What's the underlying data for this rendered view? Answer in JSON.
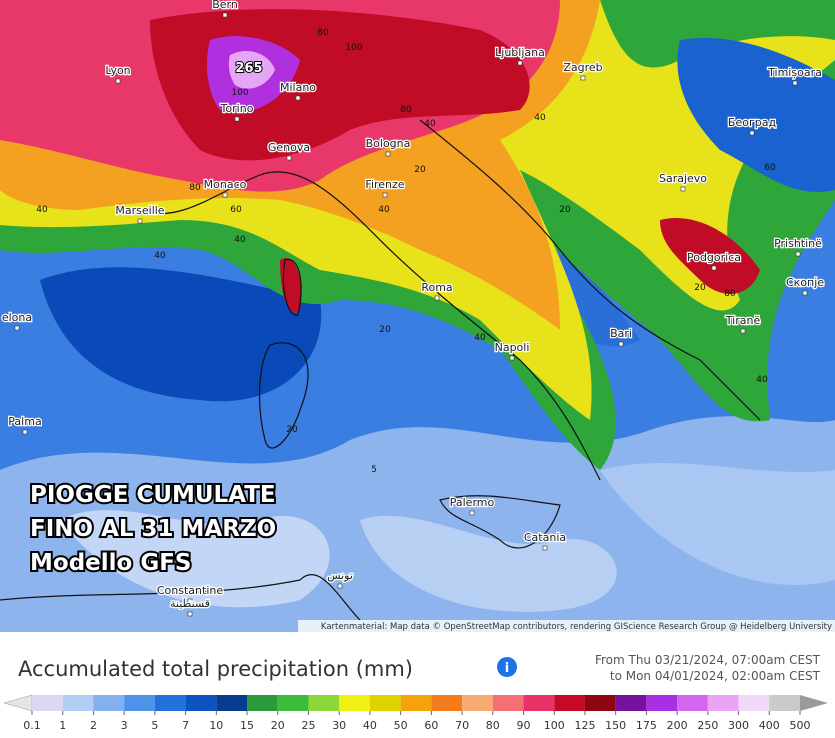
{
  "map": {
    "max_label": "265",
    "cities": [
      "Bern",
      "Lyon",
      "Milano",
      "Torino",
      "Genova",
      "Monaco",
      "Marseille",
      "Bologna",
      "Firenze",
      "Ljubljana",
      "Zagreb",
      "Timișoara",
      "Београд",
      "Sarajevo",
      "Podgorica",
      "Prishtinë",
      "Скопје",
      "Tiranë",
      "Bari",
      "Roma",
      "Napoli",
      "Palma",
      "Palermo",
      "Catania",
      "Constantine",
      "قسنطينة",
      "تونس",
      "elona"
    ],
    "contour_labels": [
      80,
      100,
      100,
      80,
      40,
      40,
      40,
      40,
      20,
      60,
      40,
      80,
      20,
      40,
      20,
      40,
      20,
      5,
      20,
      80,
      60,
      40
    ]
  },
  "overlay": {
    "lines": [
      "PIOGGE CUMULATE",
      "FINO AL 31 MARZO",
      "Modello GFS"
    ]
  },
  "attribution": "Kartenmaterial: Map data © OpenStreetMap contributors, rendering GIScience Research Group @ Heidelberg University",
  "legend": {
    "title": "Accumulated total precipitation (mm)",
    "period": [
      "From Thu 03/21/2024, 07:00am CEST",
      "to Mon 04/01/2024, 02:00am CEST"
    ],
    "ticks": [
      0.1,
      1,
      2,
      3,
      5,
      7,
      10,
      15,
      20,
      25,
      30,
      40,
      50,
      60,
      70,
      80,
      90,
      100,
      125,
      150,
      175,
      200,
      250,
      300,
      400,
      500
    ],
    "colors": [
      "#e4e4e8",
      "#dcd8f2",
      "#b2cdf4",
      "#82b0f0",
      "#4f92ea",
      "#2272dc",
      "#0c54c4",
      "#073c8e",
      "#2a9a3c",
      "#3cbc3c",
      "#8cd83a",
      "#f0f014",
      "#e0d200",
      "#f4a40a",
      "#f47c1c",
      "#f8aa72",
      "#f27274",
      "#e8326a",
      "#c40a24",
      "#8e0612",
      "#76109e",
      "#a830e2",
      "#d266f0",
      "#e8a4f6",
      "#f2d8f8",
      "#cacaca",
      "#9a9a9a"
    ]
  }
}
